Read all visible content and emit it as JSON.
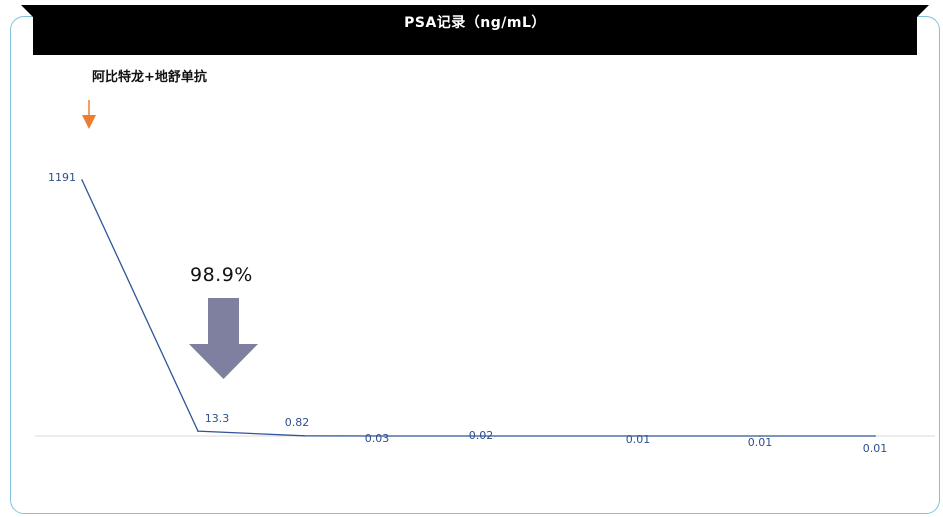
{
  "banner": {
    "title": "PSA记录（ng/mL）"
  },
  "annotations": {
    "treatment_label": "阿比特龙+地舒单抗",
    "reduction_label": "98.9%",
    "treatment_marker_icon": "down-arrow-icon",
    "reduction_icon": "big-down-arrow-icon"
  },
  "colors": {
    "line": "#2f5597",
    "data_label": "#2f4f8f",
    "frame": "#7fc4dc",
    "banner": "#000000",
    "orange_arrow": "#ed7d31",
    "big_arrow": "#7f7f9f",
    "baseline": "#d9d9d9"
  },
  "chart_data": {
    "type": "line",
    "title": "PSA记录（ng/mL）",
    "xlabel": "",
    "ylabel": "",
    "grid": false,
    "legend": "none",
    "x": [
      1,
      2,
      3,
      4,
      5,
      6,
      7,
      8
    ],
    "series": [
      {
        "values": [
          1191,
          13.3,
          0.82,
          0.03,
          0.02,
          0.01,
          0.01,
          0.01
        ],
        "labels": [
          "1191",
          "13.3",
          "0.82",
          "0.03",
          "0.02",
          "0.01",
          "0.01",
          "0.01"
        ]
      }
    ],
    "ylim": [
      0,
      1200
    ]
  }
}
